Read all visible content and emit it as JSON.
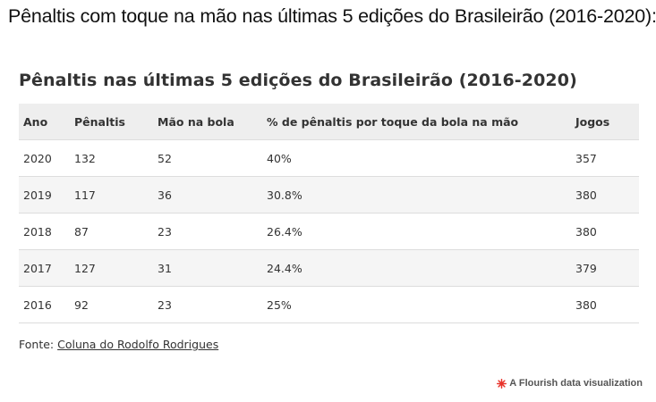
{
  "page": {
    "heading": "Pênaltis com toque na mão nas últimas 5 edições do Brasileirão (2016-2020):"
  },
  "chart_data": {
    "type": "table",
    "title": "Pênaltis nas últimas 5 edições do Brasileirão (2016-2020)",
    "columns": [
      "Ano",
      "Pênaltis",
      "Mão na bola",
      "% de pênaltis por toque da bola na mão",
      "Jogos"
    ],
    "rows": [
      [
        "2020",
        "132",
        "52",
        "40%",
        "357"
      ],
      [
        "2019",
        "117",
        "36",
        "30.8%",
        "380"
      ],
      [
        "2018",
        "87",
        "23",
        "26.4%",
        "380"
      ],
      [
        "2017",
        "127",
        "31",
        "24.4%",
        "379"
      ],
      [
        "2016",
        "92",
        "23",
        "25%",
        "380"
      ]
    ]
  },
  "source": {
    "prefix": "Fonte: ",
    "link_text": "Coluna do Rodolfo Rodrigues"
  },
  "credit": {
    "text": "A Flourish data visualization",
    "icon": "flourish-logo-icon",
    "icon_color": "#e8332a"
  }
}
